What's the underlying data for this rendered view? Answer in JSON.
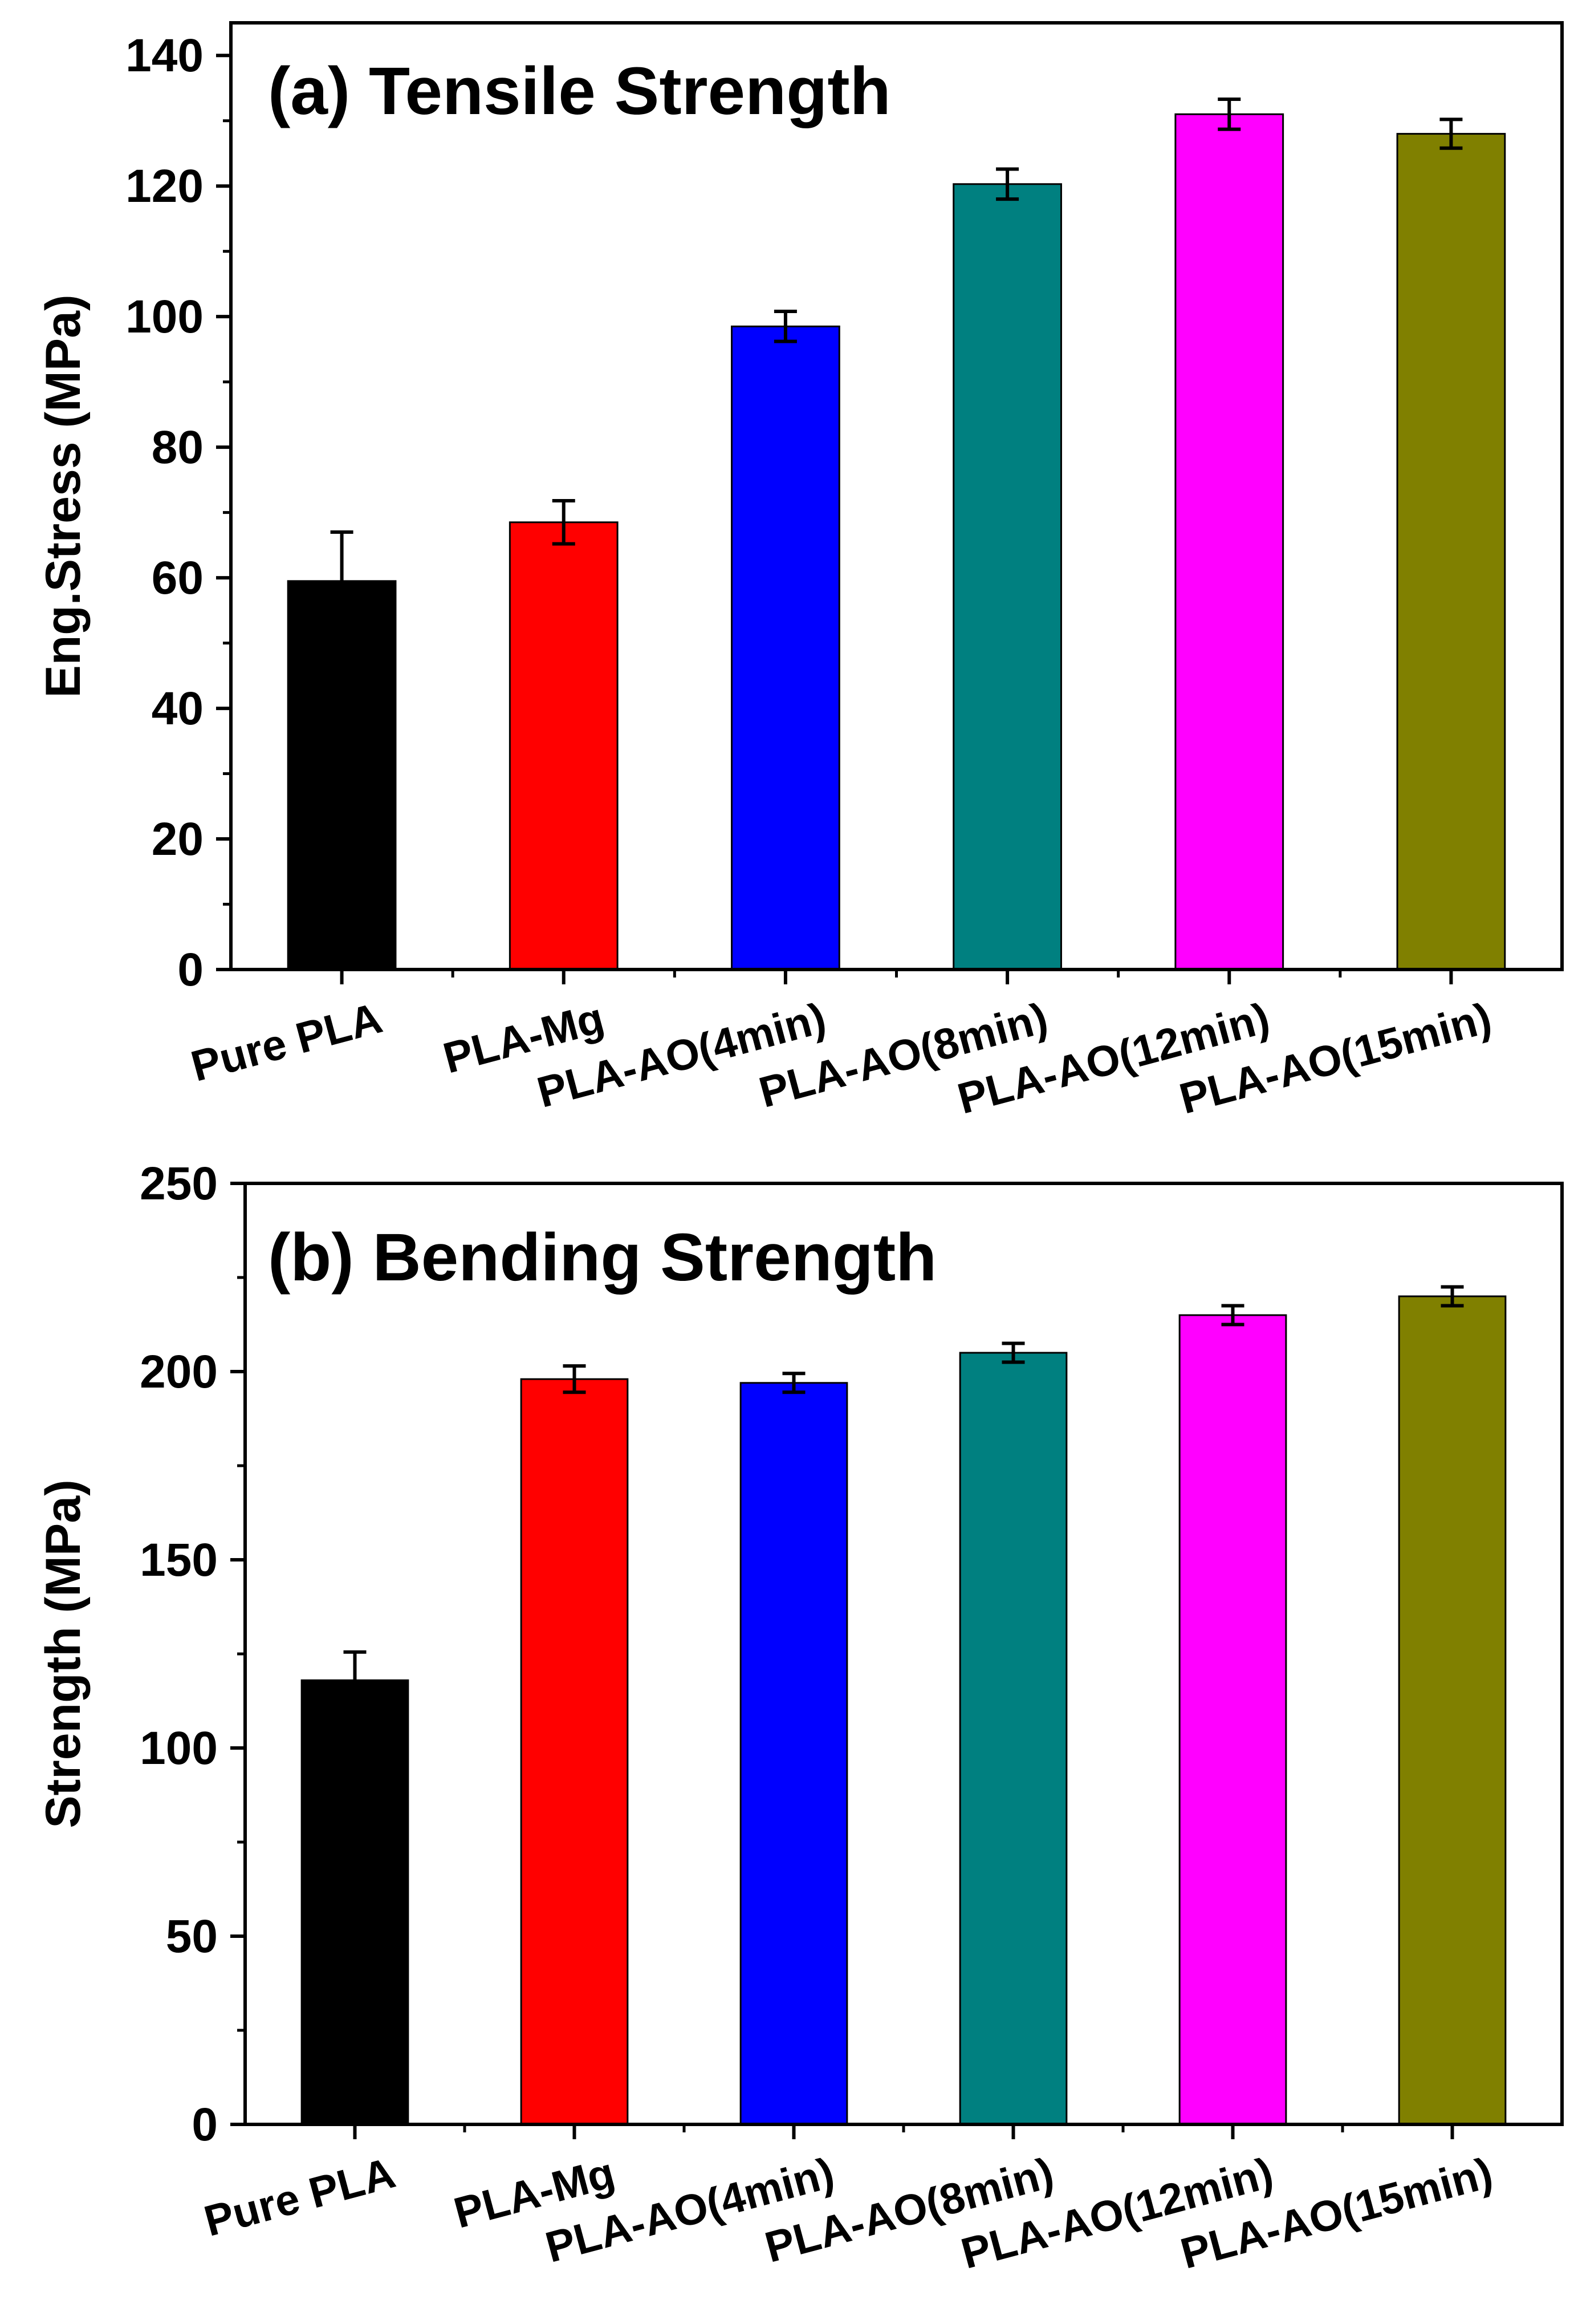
{
  "chart_data": [
    {
      "id": "tensile",
      "type": "bar",
      "title": "(a) Tensile Strength",
      "xlabel": "",
      "ylabel": "Eng.Stress (MPa)",
      "ylim": [
        0,
        145
      ],
      "yticks": [
        0,
        20,
        40,
        60,
        80,
        100,
        120,
        140
      ],
      "categories": [
        "Pure PLA",
        "PLA-Mg",
        "PLA-AO(4min)",
        "PLA-AO(8min)",
        "PLA-AO(12min)",
        "PLA-AO(15min)"
      ],
      "values": [
        59.5,
        68.5,
        98.5,
        120.3,
        131.0,
        128.0
      ],
      "errors": [
        7.5,
        3.3,
        2.3,
        2.3,
        2.3,
        2.2
      ],
      "colors": [
        "#000000",
        "#ff0000",
        "#0000ff",
        "#008080",
        "#ff00ff",
        "#808000"
      ],
      "grid": false
    },
    {
      "id": "bending",
      "type": "bar",
      "title": "(b) Bending Strength",
      "xlabel": "",
      "ylabel": "Strength (MPa)",
      "ylim": [
        0,
        250
      ],
      "yticks": [
        0,
        50,
        100,
        150,
        200,
        250
      ],
      "categories": [
        "Pure PLA",
        "PLA-Mg",
        "PLA-AO(4min)",
        "PLA-AO(8min)",
        "PLA-AO(12min)",
        "PLA-AO(15min)"
      ],
      "values": [
        118,
        198,
        197,
        205,
        215,
        220
      ],
      "errors": [
        7.5,
        3.5,
        2.5,
        2.5,
        2.5,
        2.5
      ],
      "colors": [
        "#000000",
        "#ff0000",
        "#0000ff",
        "#008080",
        "#ff00ff",
        "#808000"
      ],
      "grid": false
    }
  ]
}
